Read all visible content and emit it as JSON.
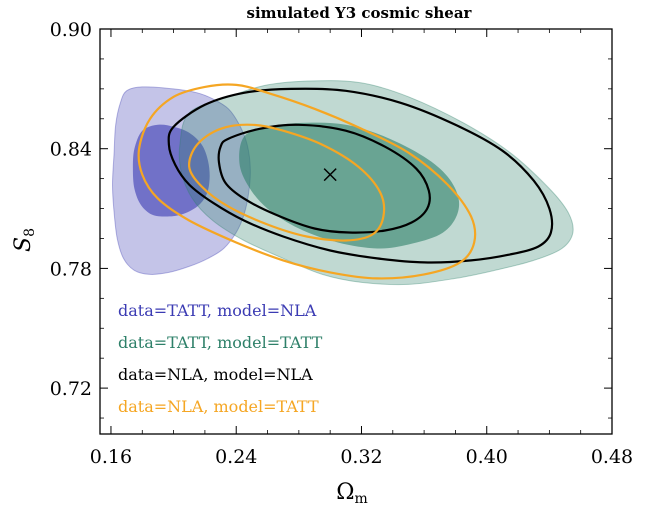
{
  "chart_data": {
    "type": "contour",
    "title": "simulated Y3 cosmic shear",
    "xlabel": "Ω",
    "xlabel_sub": "m",
    "ylabel": "S",
    "ylabel_sub": "8",
    "xlim": [
      0.153,
      0.48
    ],
    "ylim": [
      0.697,
      0.9
    ],
    "xticks": [
      0.16,
      0.24,
      0.32,
      0.4,
      0.48
    ],
    "xtick_labels": [
      "0.16",
      "0.24",
      "0.32",
      "0.40",
      "0.48"
    ],
    "yticks": [
      0.72,
      0.78,
      0.84,
      0.9
    ],
    "ytick_labels": [
      "0.72",
      "0.78",
      "0.84",
      "0.90"
    ],
    "grid": false,
    "legend_position": "lower-left",
    "fiducial_marker": {
      "x": 0.3,
      "y": 0.827,
      "symbol": "×"
    },
    "series": [
      {
        "name": "data=TATT, model=NLA",
        "color": "#3b3bb3",
        "style": "filled",
        "contours": {
          "outer_95": [
            [
              0.17,
              0.869
            ],
            [
              0.18,
              0.871
            ],
            [
              0.2,
              0.87
            ],
            [
              0.215,
              0.868
            ],
            [
              0.225,
              0.865
            ],
            [
              0.235,
              0.86
            ],
            [
              0.242,
              0.852
            ],
            [
              0.247,
              0.842
            ],
            [
              0.249,
              0.83
            ],
            [
              0.248,
              0.818
            ],
            [
              0.245,
              0.807
            ],
            [
              0.24,
              0.798
            ],
            [
              0.232,
              0.79
            ],
            [
              0.222,
              0.785
            ],
            [
              0.21,
              0.781
            ],
            [
              0.197,
              0.778
            ],
            [
              0.185,
              0.777
            ],
            [
              0.175,
              0.779
            ],
            [
              0.168,
              0.785
            ],
            [
              0.164,
              0.795
            ],
            [
              0.162,
              0.808
            ],
            [
              0.161,
              0.822
            ],
            [
              0.162,
              0.838
            ],
            [
              0.163,
              0.852
            ],
            [
              0.166,
              0.863
            ]
          ],
          "inner_68": [
            [
              0.18,
              0.849
            ],
            [
              0.19,
              0.852
            ],
            [
              0.2,
              0.851
            ],
            [
              0.21,
              0.848
            ],
            [
              0.218,
              0.842
            ],
            [
              0.222,
              0.834
            ],
            [
              0.223,
              0.825
            ],
            [
              0.221,
              0.817
            ],
            [
              0.215,
              0.811
            ],
            [
              0.205,
              0.807
            ],
            [
              0.195,
              0.806
            ],
            [
              0.186,
              0.807
            ],
            [
              0.179,
              0.812
            ],
            [
              0.175,
              0.82
            ],
            [
              0.174,
              0.83
            ],
            [
              0.175,
              0.84
            ]
          ]
        }
      },
      {
        "name": "data=TATT, model=TATT",
        "color": "#2e8069",
        "style": "filled",
        "contours": {
          "outer_95": [
            [
              0.21,
              0.858
            ],
            [
              0.235,
              0.866
            ],
            [
              0.26,
              0.872
            ],
            [
              0.29,
              0.874
            ],
            [
              0.32,
              0.873
            ],
            [
              0.35,
              0.866
            ],
            [
              0.385,
              0.853
            ],
            [
              0.415,
              0.838
            ],
            [
              0.44,
              0.82
            ],
            [
              0.452,
              0.808
            ],
            [
              0.455,
              0.798
            ],
            [
              0.448,
              0.79
            ],
            [
              0.43,
              0.784
            ],
            [
              0.405,
              0.779
            ],
            [
              0.38,
              0.775
            ],
            [
              0.35,
              0.772
            ],
            [
              0.32,
              0.773
            ],
            [
              0.295,
              0.777
            ],
            [
              0.27,
              0.785
            ],
            [
              0.245,
              0.794
            ],
            [
              0.225,
              0.804
            ],
            [
              0.212,
              0.815
            ],
            [
              0.205,
              0.828
            ],
            [
              0.204,
              0.842
            ]
          ],
          "inner_68": [
            [
              0.245,
              0.846
            ],
            [
              0.26,
              0.851
            ],
            [
              0.285,
              0.853
            ],
            [
              0.31,
              0.852
            ],
            [
              0.335,
              0.846
            ],
            [
              0.36,
              0.836
            ],
            [
              0.375,
              0.826
            ],
            [
              0.382,
              0.815
            ],
            [
              0.38,
              0.805
            ],
            [
              0.37,
              0.797
            ],
            [
              0.35,
              0.792
            ],
            [
              0.33,
              0.79
            ],
            [
              0.305,
              0.793
            ],
            [
              0.28,
              0.8
            ],
            [
              0.26,
              0.81
            ],
            [
              0.248,
              0.821
            ],
            [
              0.242,
              0.833
            ]
          ]
        }
      },
      {
        "name": "data=NLA, model=NLA",
        "color": "#000000",
        "style": "line",
        "contours": {
          "outer_95": [
            [
              0.2,
              0.851
            ],
            [
              0.22,
              0.862
            ],
            [
              0.245,
              0.868
            ],
            [
              0.275,
              0.87
            ],
            [
              0.31,
              0.869
            ],
            [
              0.345,
              0.863
            ],
            [
              0.38,
              0.852
            ],
            [
              0.41,
              0.839
            ],
            [
              0.43,
              0.824
            ],
            [
              0.44,
              0.81
            ],
            [
              0.441,
              0.798
            ],
            [
              0.433,
              0.791
            ],
            [
              0.415,
              0.787
            ],
            [
              0.39,
              0.784
            ],
            [
              0.36,
              0.783
            ],
            [
              0.33,
              0.785
            ],
            [
              0.3,
              0.789
            ],
            [
              0.27,
              0.796
            ],
            [
              0.245,
              0.804
            ],
            [
              0.225,
              0.813
            ],
            [
              0.21,
              0.822
            ],
            [
              0.201,
              0.832
            ],
            [
              0.197,
              0.842
            ]
          ],
          "inner_68": [
            [
              0.235,
              0.845
            ],
            [
              0.255,
              0.85
            ],
            [
              0.28,
              0.852
            ],
            [
              0.31,
              0.849
            ],
            [
              0.335,
              0.841
            ],
            [
              0.355,
              0.83
            ],
            [
              0.363,
              0.819
            ],
            [
              0.362,
              0.81
            ],
            [
              0.352,
              0.803
            ],
            [
              0.335,
              0.799
            ],
            [
              0.312,
              0.798
            ],
            [
              0.29,
              0.8
            ],
            [
              0.265,
              0.807
            ],
            [
              0.245,
              0.815
            ],
            [
              0.233,
              0.823
            ],
            [
              0.229,
              0.833
            ],
            [
              0.23,
              0.841
            ]
          ]
        }
      },
      {
        "name": "data=NLA, model=TATT",
        "color": "#f5a623",
        "style": "line",
        "contours": {
          "outer_95": [
            [
              0.185,
              0.855
            ],
            [
              0.2,
              0.866
            ],
            [
              0.22,
              0.871
            ],
            [
              0.24,
              0.872
            ],
            [
              0.26,
              0.868
            ],
            [
              0.29,
              0.86
            ],
            [
              0.32,
              0.85
            ],
            [
              0.35,
              0.838
            ],
            [
              0.375,
              0.822
            ],
            [
              0.39,
              0.806
            ],
            [
              0.392,
              0.793
            ],
            [
              0.383,
              0.783
            ],
            [
              0.36,
              0.777
            ],
            [
              0.33,
              0.775
            ],
            [
              0.3,
              0.778
            ],
            [
              0.27,
              0.784
            ],
            [
              0.24,
              0.793
            ],
            [
              0.21,
              0.804
            ],
            [
              0.19,
              0.815
            ],
            [
              0.18,
              0.827
            ],
            [
              0.178,
              0.84
            ]
          ],
          "inner_68": [
            [
              0.215,
              0.842
            ],
            [
              0.23,
              0.85
            ],
            [
              0.25,
              0.852
            ],
            [
              0.27,
              0.849
            ],
            [
              0.295,
              0.842
            ],
            [
              0.318,
              0.831
            ],
            [
              0.332,
              0.818
            ],
            [
              0.334,
              0.806
            ],
            [
              0.327,
              0.797
            ],
            [
              0.31,
              0.794
            ],
            [
              0.285,
              0.796
            ],
            [
              0.26,
              0.802
            ],
            [
              0.235,
              0.811
            ],
            [
              0.218,
              0.821
            ],
            [
              0.21,
              0.831
            ]
          ]
        }
      }
    ]
  }
}
